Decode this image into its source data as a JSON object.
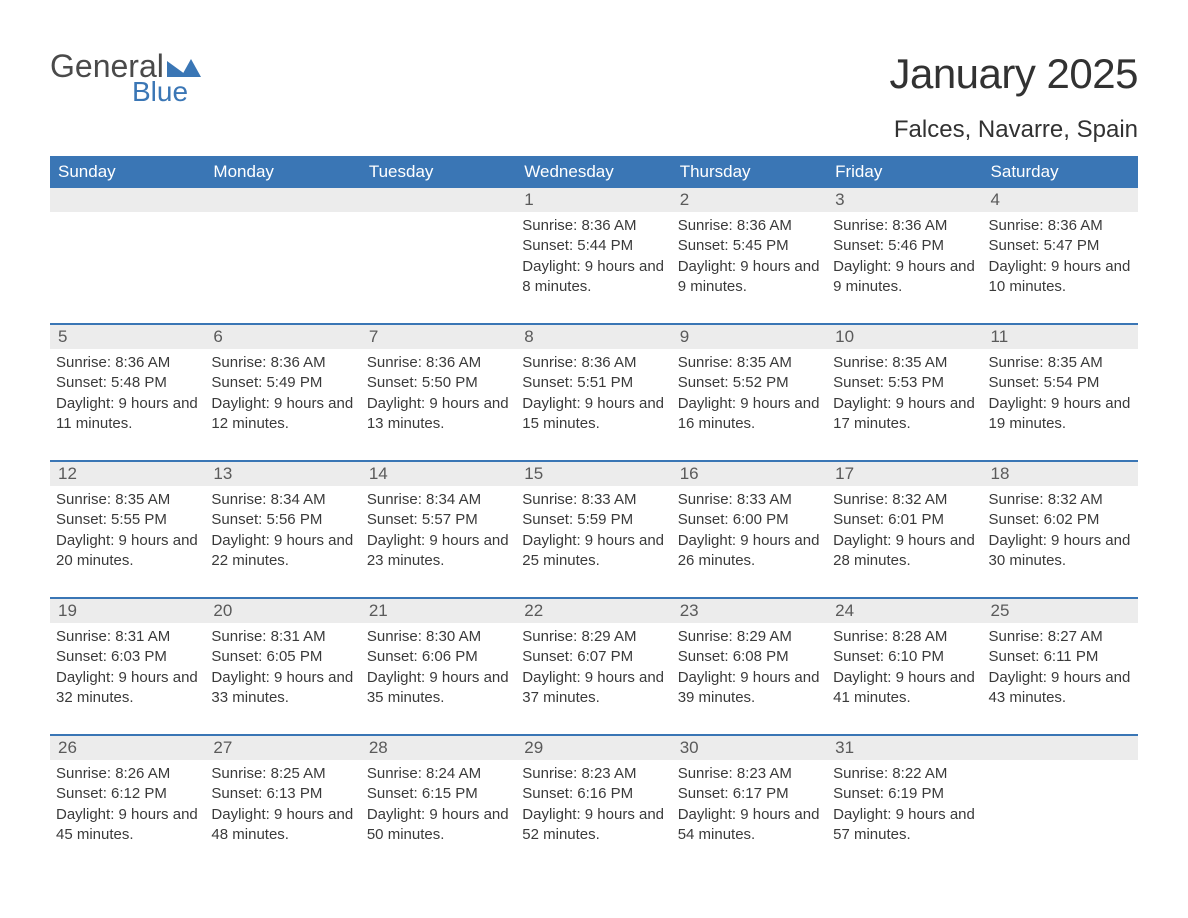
{
  "logo": {
    "text1": "General",
    "text2": "Blue",
    "mark_color": "#3a76b5"
  },
  "title": {
    "month": "January 2025",
    "location": "Falces, Navarre, Spain"
  },
  "colors": {
    "header_bg": "#3a76b5",
    "header_fg": "#ffffff",
    "daynum_bg": "#ececec",
    "border": "#3a76b5",
    "text": "#3a3a3a",
    "page_bg": "#ffffff"
  },
  "typography": {
    "title_fontsize": 42,
    "location_fontsize": 24,
    "dayhead_fontsize": 17,
    "daynum_fontsize": 17,
    "body_fontsize": 15
  },
  "day_headers": [
    "Sunday",
    "Monday",
    "Tuesday",
    "Wednesday",
    "Thursday",
    "Friday",
    "Saturday"
  ],
  "weeks": [
    [
      {
        "n": "",
        "sunrise": "",
        "sunset": "",
        "daylight": ""
      },
      {
        "n": "",
        "sunrise": "",
        "sunset": "",
        "daylight": ""
      },
      {
        "n": "",
        "sunrise": "",
        "sunset": "",
        "daylight": ""
      },
      {
        "n": "1",
        "sunrise": "8:36 AM",
        "sunset": "5:44 PM",
        "daylight": "9 hours and 8 minutes."
      },
      {
        "n": "2",
        "sunrise": "8:36 AM",
        "sunset": "5:45 PM",
        "daylight": "9 hours and 9 minutes."
      },
      {
        "n": "3",
        "sunrise": "8:36 AM",
        "sunset": "5:46 PM",
        "daylight": "9 hours and 9 minutes."
      },
      {
        "n": "4",
        "sunrise": "8:36 AM",
        "sunset": "5:47 PM",
        "daylight": "9 hours and 10 minutes."
      }
    ],
    [
      {
        "n": "5",
        "sunrise": "8:36 AM",
        "sunset": "5:48 PM",
        "daylight": "9 hours and 11 minutes."
      },
      {
        "n": "6",
        "sunrise": "8:36 AM",
        "sunset": "5:49 PM",
        "daylight": "9 hours and 12 minutes."
      },
      {
        "n": "7",
        "sunrise": "8:36 AM",
        "sunset": "5:50 PM",
        "daylight": "9 hours and 13 minutes."
      },
      {
        "n": "8",
        "sunrise": "8:36 AM",
        "sunset": "5:51 PM",
        "daylight": "9 hours and 15 minutes."
      },
      {
        "n": "9",
        "sunrise": "8:35 AM",
        "sunset": "5:52 PM",
        "daylight": "9 hours and 16 minutes."
      },
      {
        "n": "10",
        "sunrise": "8:35 AM",
        "sunset": "5:53 PM",
        "daylight": "9 hours and 17 minutes."
      },
      {
        "n": "11",
        "sunrise": "8:35 AM",
        "sunset": "5:54 PM",
        "daylight": "9 hours and 19 minutes."
      }
    ],
    [
      {
        "n": "12",
        "sunrise": "8:35 AM",
        "sunset": "5:55 PM",
        "daylight": "9 hours and 20 minutes."
      },
      {
        "n": "13",
        "sunrise": "8:34 AM",
        "sunset": "5:56 PM",
        "daylight": "9 hours and 22 minutes."
      },
      {
        "n": "14",
        "sunrise": "8:34 AM",
        "sunset": "5:57 PM",
        "daylight": "9 hours and 23 minutes."
      },
      {
        "n": "15",
        "sunrise": "8:33 AM",
        "sunset": "5:59 PM",
        "daylight": "9 hours and 25 minutes."
      },
      {
        "n": "16",
        "sunrise": "8:33 AM",
        "sunset": "6:00 PM",
        "daylight": "9 hours and 26 minutes."
      },
      {
        "n": "17",
        "sunrise": "8:32 AM",
        "sunset": "6:01 PM",
        "daylight": "9 hours and 28 minutes."
      },
      {
        "n": "18",
        "sunrise": "8:32 AM",
        "sunset": "6:02 PM",
        "daylight": "9 hours and 30 minutes."
      }
    ],
    [
      {
        "n": "19",
        "sunrise": "8:31 AM",
        "sunset": "6:03 PM",
        "daylight": "9 hours and 32 minutes."
      },
      {
        "n": "20",
        "sunrise": "8:31 AM",
        "sunset": "6:05 PM",
        "daylight": "9 hours and 33 minutes."
      },
      {
        "n": "21",
        "sunrise": "8:30 AM",
        "sunset": "6:06 PM",
        "daylight": "9 hours and 35 minutes."
      },
      {
        "n": "22",
        "sunrise": "8:29 AM",
        "sunset": "6:07 PM",
        "daylight": "9 hours and 37 minutes."
      },
      {
        "n": "23",
        "sunrise": "8:29 AM",
        "sunset": "6:08 PM",
        "daylight": "9 hours and 39 minutes."
      },
      {
        "n": "24",
        "sunrise": "8:28 AM",
        "sunset": "6:10 PM",
        "daylight": "9 hours and 41 minutes."
      },
      {
        "n": "25",
        "sunrise": "8:27 AM",
        "sunset": "6:11 PM",
        "daylight": "9 hours and 43 minutes."
      }
    ],
    [
      {
        "n": "26",
        "sunrise": "8:26 AM",
        "sunset": "6:12 PM",
        "daylight": "9 hours and 45 minutes."
      },
      {
        "n": "27",
        "sunrise": "8:25 AM",
        "sunset": "6:13 PM",
        "daylight": "9 hours and 48 minutes."
      },
      {
        "n": "28",
        "sunrise": "8:24 AM",
        "sunset": "6:15 PM",
        "daylight": "9 hours and 50 minutes."
      },
      {
        "n": "29",
        "sunrise": "8:23 AM",
        "sunset": "6:16 PM",
        "daylight": "9 hours and 52 minutes."
      },
      {
        "n": "30",
        "sunrise": "8:23 AM",
        "sunset": "6:17 PM",
        "daylight": "9 hours and 54 minutes."
      },
      {
        "n": "31",
        "sunrise": "8:22 AM",
        "sunset": "6:19 PM",
        "daylight": "9 hours and 57 minutes."
      },
      {
        "n": "",
        "sunrise": "",
        "sunset": "",
        "daylight": ""
      }
    ]
  ],
  "labels": {
    "sunrise": "Sunrise:",
    "sunset": "Sunset:",
    "daylight": "Daylight:"
  }
}
